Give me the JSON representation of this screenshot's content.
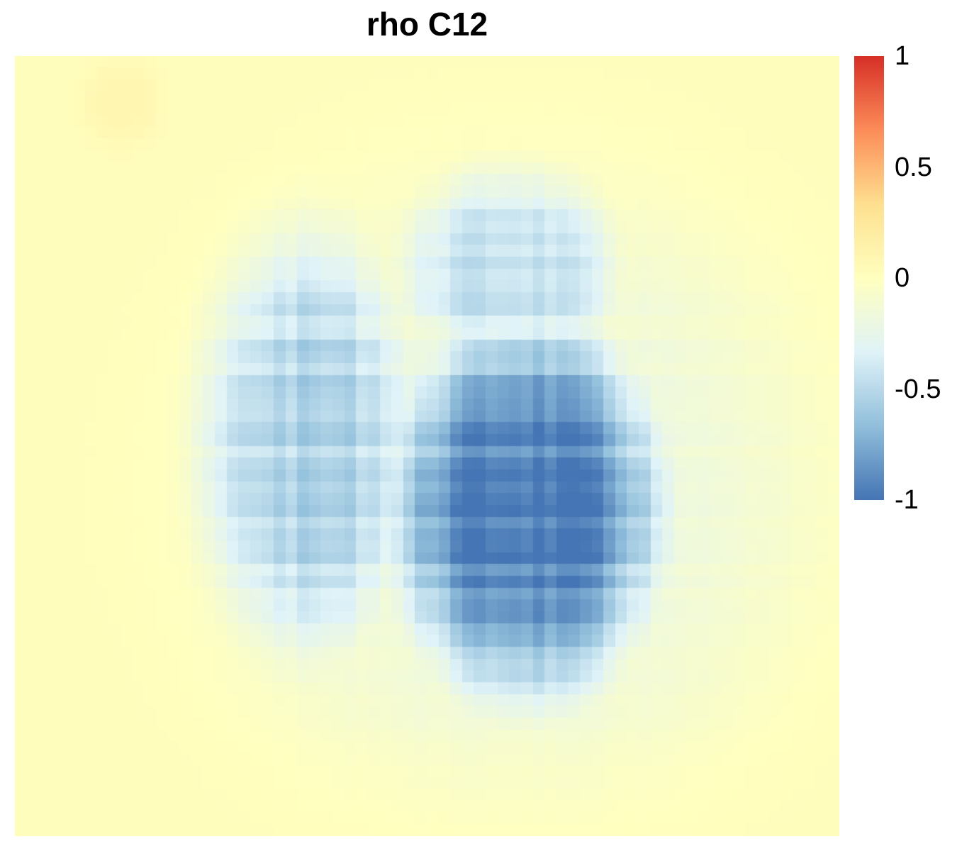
{
  "chart_data": {
    "type": "heatmap",
    "title": "rho C12",
    "xlabel": "",
    "ylabel": "",
    "grid": false,
    "legend_position": "right",
    "color_scale": {
      "min": -1,
      "max": 1,
      "colors": [
        "#4575b4",
        "#91bfdb",
        "#e0f3f8",
        "#ffffbf",
        "#fee090",
        "#fc8d59",
        "#d73027"
      ],
      "ticks": [
        {
          "value": 1,
          "label": "1"
        },
        {
          "value": 0.5,
          "label": "0.5"
        },
        {
          "value": 0,
          "label": "0"
        },
        {
          "value": -0.5,
          "label": "-0.5"
        },
        {
          "value": -1,
          "label": "-1"
        }
      ]
    },
    "matrix": {
      "rows": 66,
      "cols": 70,
      "background_value": 0.02,
      "regions": [
        {
          "description": "core",
          "center_col": 0.62,
          "center_row": 0.58,
          "radius_col": 0.17,
          "radius_row": 0.25,
          "value": -0.97
        },
        {
          "description": "left lobe",
          "center_col": 0.36,
          "center_row": 0.5,
          "radius_col": 0.14,
          "radius_row": 0.28,
          "value": -0.55
        },
        {
          "description": "upper lobe",
          "center_col": 0.6,
          "center_row": 0.28,
          "radius_col": 0.14,
          "radius_row": 0.14,
          "value": -0.45
        },
        {
          "description": "halo",
          "center_col": 0.6,
          "center_row": 0.55,
          "radius_col": 0.38,
          "radius_row": 0.4,
          "value": -0.2
        },
        {
          "description": "top-left warm patch",
          "center_col": 0.13,
          "center_row": 0.06,
          "radius_col": 0.05,
          "radius_row": 0.06,
          "value": 0.08
        }
      ]
    }
  }
}
